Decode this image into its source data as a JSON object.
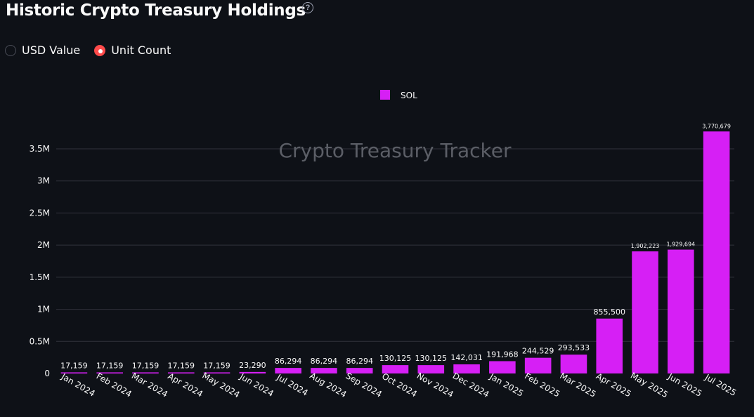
{
  "header": {
    "title": "Historic Crypto Treasury Holdings",
    "help_icon": "question-circle-icon"
  },
  "radio": {
    "options": [
      {
        "label": "USD Value",
        "selected": false
      },
      {
        "label": "Unit Count",
        "selected": true
      }
    ],
    "accent_color": "#ff4b4b"
  },
  "watermark": "Crypto Treasury Tracker",
  "chart_data": {
    "type": "bar",
    "categories": [
      "Jan 2024",
      "Feb 2024",
      "Mar 2024",
      "Apr 2024",
      "May 2024",
      "Jun 2024",
      "Jul 2024",
      "Aug 2024",
      "Sep 2024",
      "Oct 2024",
      "Nov 2024",
      "Dec 2024",
      "Jan 2025",
      "Feb 2025",
      "Mar 2025",
      "Apr 2025",
      "May 2025",
      "Jun 2025",
      "Jul 2025"
    ],
    "series": [
      {
        "name": "SOL",
        "color": "#d61ff5",
        "values": [
          17159,
          17159,
          17159,
          17159,
          17159,
          23290,
          86294,
          86294,
          86294,
          130125,
          130125,
          142031,
          191968,
          244529,
          293533,
          855500,
          1902223,
          1929694,
          3770679
        ],
        "labels": [
          "17,159",
          "17,159",
          "17,159",
          "17,159",
          "17,159",
          "23,290",
          "86,294",
          "86,294",
          "86,294",
          "130,125",
          "130,125",
          "142,031",
          "191,968",
          "244,529",
          "293,533",
          "855,500",
          "1,902,223",
          "1,929,694",
          "3,770,679"
        ]
      }
    ],
    "title": "",
    "xlabel": "",
    "ylabel": "",
    "ylim": [
      0,
      4000000
    ],
    "yticks": [
      0,
      500000,
      1000000,
      1500000,
      2000000,
      2500000,
      3000000,
      3500000
    ],
    "ytick_labels": [
      "0",
      "0.5M",
      "1M",
      "1.5M",
      "2M",
      "2.5M",
      "3M",
      "3.5M"
    ],
    "grid": true,
    "legend": "top-center",
    "colors": {
      "background": "#0e1117",
      "grid": "#31333c"
    }
  }
}
